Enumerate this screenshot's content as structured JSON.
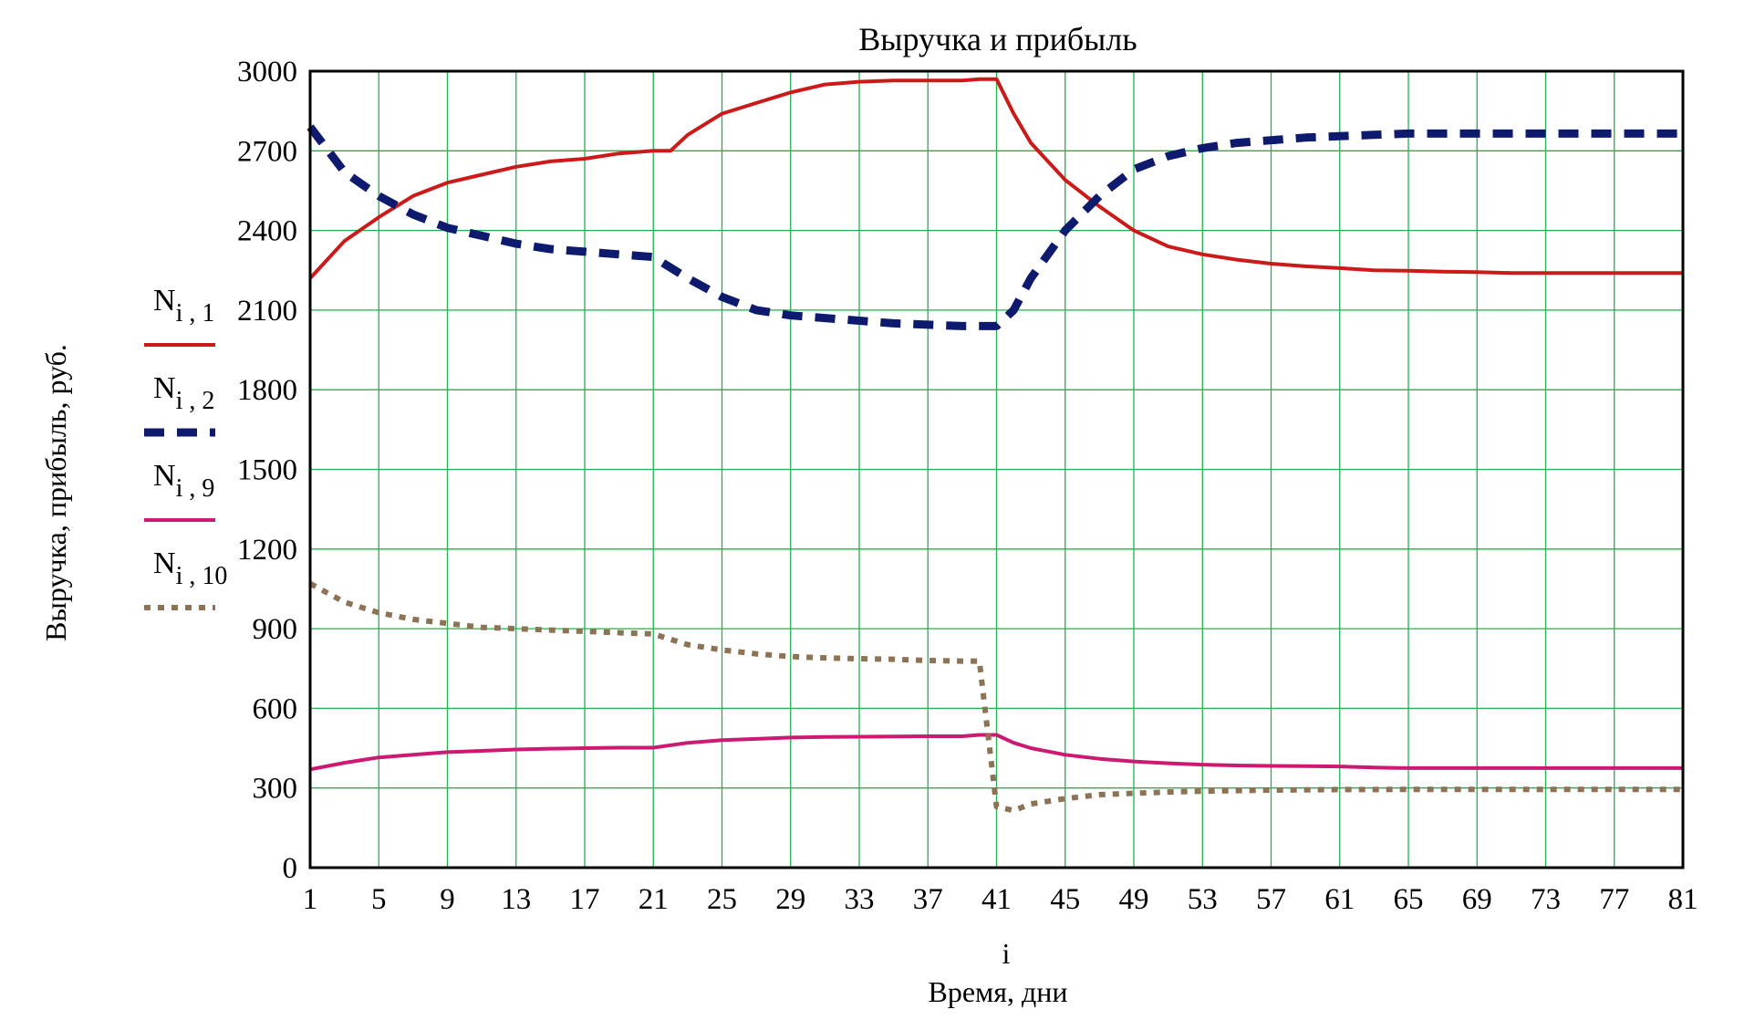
{
  "chart_data": {
    "type": "line",
    "title": "Выручка и прибыль",
    "xlabel_var": "i",
    "xlabel": "Время, дни",
    "ylabel": "Выручка, прибыль, руб.",
    "xlim": [
      1,
      81
    ],
    "ylim": [
      0,
      3000
    ],
    "x_ticks": [
      1,
      5,
      9,
      13,
      17,
      21,
      25,
      29,
      33,
      37,
      41,
      45,
      49,
      53,
      57,
      61,
      65,
      69,
      73,
      77,
      81
    ],
    "y_ticks": [
      0,
      300,
      600,
      900,
      1200,
      1500,
      1800,
      2100,
      2400,
      2700,
      3000
    ],
    "grid": true,
    "legend_position": "left",
    "series": [
      {
        "name_base": "N",
        "name_sub": "i , 1",
        "color": "#cc1a1a",
        "style": "solid",
        "x": [
          1,
          3,
          5,
          7,
          9,
          11,
          13,
          15,
          17,
          19,
          21,
          22,
          23,
          25,
          27,
          29,
          31,
          33,
          35,
          37,
          39,
          40,
          41,
          42,
          43,
          45,
          47,
          49,
          51,
          53,
          55,
          57,
          59,
          61,
          63,
          65,
          67,
          69,
          71,
          73,
          75,
          77,
          79,
          81
        ],
        "values": [
          2220,
          2360,
          2450,
          2530,
          2580,
          2610,
          2640,
          2660,
          2670,
          2690,
          2700,
          2700,
          2760,
          2840,
          2880,
          2920,
          2950,
          2960,
          2965,
          2965,
          2965,
          2970,
          2970,
          2840,
          2730,
          2590,
          2490,
          2400,
          2340,
          2310,
          2290,
          2275,
          2265,
          2258,
          2250,
          2248,
          2245,
          2243,
          2240,
          2240,
          2240,
          2240,
          2240,
          2240
        ]
      },
      {
        "name_base": "N",
        "name_sub": "i , 2",
        "color": "#0d1a6e",
        "style": "dashed",
        "x": [
          1,
          3,
          5,
          7,
          9,
          11,
          13,
          15,
          17,
          19,
          21,
          23,
          25,
          27,
          29,
          31,
          33,
          35,
          37,
          39,
          40,
          41,
          42,
          43,
          45,
          47,
          49,
          51,
          53,
          55,
          57,
          59,
          61,
          63,
          65,
          67,
          69,
          71,
          73,
          75,
          77,
          79,
          81
        ],
        "values": [
          2790,
          2620,
          2530,
          2460,
          2410,
          2380,
          2350,
          2330,
          2320,
          2310,
          2300,
          2220,
          2150,
          2100,
          2080,
          2070,
          2060,
          2050,
          2045,
          2040,
          2040,
          2040,
          2100,
          2220,
          2400,
          2530,
          2630,
          2680,
          2710,
          2730,
          2740,
          2750,
          2755,
          2760,
          2765,
          2765,
          2765,
          2765,
          2765,
          2765,
          2765,
          2765,
          2765
        ]
      },
      {
        "name_base": "N",
        "name_sub": "i , 9",
        "color": "#cc1a73",
        "style": "solid",
        "x": [
          1,
          3,
          5,
          7,
          9,
          11,
          13,
          15,
          17,
          19,
          21,
          23,
          25,
          27,
          29,
          31,
          33,
          35,
          37,
          39,
          40,
          41,
          42,
          43,
          45,
          47,
          49,
          51,
          53,
          55,
          57,
          59,
          61,
          63,
          65,
          67,
          69,
          71,
          73,
          75,
          77,
          79,
          81
        ],
        "values": [
          370,
          395,
          415,
          425,
          435,
          440,
          445,
          448,
          450,
          452,
          452,
          470,
          480,
          485,
          490,
          492,
          493,
          494,
          495,
          495,
          500,
          500,
          470,
          450,
          425,
          410,
          400,
          393,
          388,
          385,
          383,
          382,
          381,
          377,
          375,
          375,
          375,
          375,
          375,
          375,
          375,
          375,
          375
        ]
      },
      {
        "name_base": "N",
        "name_sub": "i , 10",
        "color": "#8c7356",
        "style": "dotted",
        "x": [
          1,
          3,
          5,
          7,
          9,
          11,
          13,
          15,
          17,
          19,
          21,
          23,
          25,
          27,
          29,
          31,
          33,
          35,
          37,
          39,
          40,
          41,
          42,
          43,
          45,
          47,
          49,
          51,
          53,
          55,
          57,
          59,
          61,
          63,
          65,
          67,
          69,
          71,
          73,
          75,
          77,
          79,
          81
        ],
        "values": [
          1070,
          1000,
          960,
          935,
          920,
          905,
          900,
          895,
          890,
          885,
          880,
          840,
          820,
          805,
          795,
          790,
          787,
          785,
          780,
          778,
          778,
          230,
          215,
          240,
          260,
          275,
          280,
          285,
          288,
          290,
          292,
          293,
          294,
          294,
          295,
          295,
          295,
          295,
          295,
          295,
          295,
          295,
          295
        ]
      }
    ]
  }
}
